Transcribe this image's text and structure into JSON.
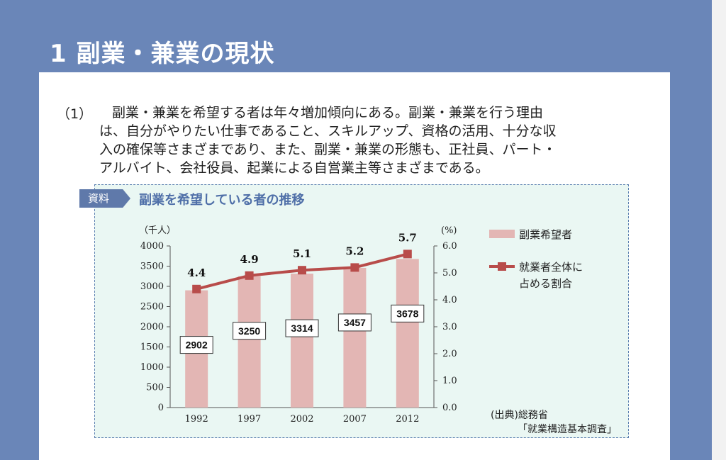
{
  "heading": "1  副業・兼業の現状",
  "paragraph": {
    "number": "（1）",
    "lines": [
      "副業・兼業を希望する者は年々増加傾向にある。副業・兼業を行う理由",
      "は、自分がやりたい仕事であること、スキルアップ、資格の活用、十分な収",
      "入の確保等さまざまであり、また、副業・兼業の形態も、正社員、パート・",
      "アルバイト、会社役員、起業による自営業主等さまざまである。"
    ]
  },
  "figure": {
    "tag": "資料",
    "title": "副業を希望している者の推移",
    "source_line1": "(出典)総務省",
    "source_line2": "「就業構造基本調査」"
  },
  "chart_data": {
    "type": "bar",
    "categories": [
      "1992",
      "1997",
      "2002",
      "2007",
      "2012"
    ],
    "series": [
      {
        "name": "副業希望者",
        "type": "bar",
        "axis": "left",
        "values": [
          2902,
          3250,
          3314,
          3457,
          3678
        ],
        "labels": [
          "2902",
          "3250",
          "3314",
          "3457",
          "3678"
        ],
        "color": "#e3b6b4"
      },
      {
        "name": "就業者全体に占める割合",
        "type": "line",
        "axis": "right",
        "values": [
          4.4,
          4.9,
          5.1,
          5.2,
          5.7
        ],
        "labels": [
          "4.4",
          "4.9",
          "5.1",
          "5.2",
          "5.7"
        ],
        "color": "#b84c4a"
      }
    ],
    "legend": [
      "副業希望者",
      "就業者全体に",
      "占める割合"
    ],
    "ylabel_left": "（千人）",
    "ylabel_right": "(%)",
    "ylim_left": [
      0,
      4000
    ],
    "ylim_right": [
      0,
      6.0
    ],
    "yticks_left": [
      "0",
      "500",
      "1000",
      "1500",
      "2000",
      "2500",
      "3000",
      "3500",
      "4000"
    ],
    "yticks_right": [
      "0.0",
      "1.0",
      "2.0",
      "3.0",
      "4.0",
      "5.0",
      "6.0"
    ],
    "legend_position": "right",
    "grid": false
  }
}
